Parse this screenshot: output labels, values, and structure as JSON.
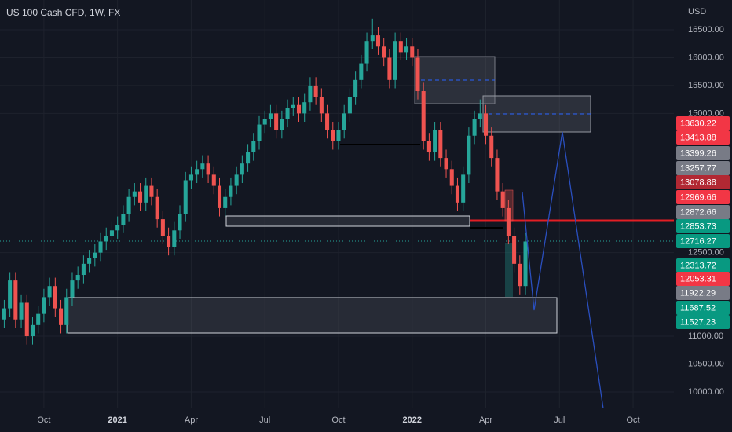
{
  "chart_data": {
    "type": "candlestick",
    "title": "US 100 Cash CFD, 1W, FX",
    "y_unit": "USD",
    "up_color": "#26a69a",
    "down_color": "#ef5350",
    "grid": true,
    "xlim": [
      -7.75,
      111.2
    ],
    "xticks": [
      {
        "value": 0,
        "label": "Oct"
      },
      {
        "value": 13,
        "label": "2021"
      },
      {
        "value": 26,
        "label": "Apr"
      },
      {
        "value": 39,
        "label": "Jul"
      },
      {
        "value": 52,
        "label": "Oct"
      },
      {
        "value": 65,
        "label": "2022"
      },
      {
        "value": 78,
        "label": "Apr"
      },
      {
        "value": 91,
        "label": "Jul"
      },
      {
        "value": 104,
        "label": "Oct"
      }
    ],
    "ylim": [
      9703,
      17036
    ],
    "yticks": [
      {
        "value": 16500,
        "label": "16500.00"
      },
      {
        "value": 16000,
        "label": "16000.00"
      },
      {
        "value": 15500,
        "label": "15500.00"
      },
      {
        "value": 15000,
        "label": "15000.00"
      },
      {
        "value": 12500,
        "label": "12500.00"
      },
      {
        "value": 11000,
        "label": "11000.00"
      },
      {
        "value": 10500,
        "label": "10500.00"
      },
      {
        "value": 10000,
        "label": "10000.00"
      }
    ],
    "x": [
      -7,
      -6,
      -5,
      -4,
      -3,
      -2,
      -1,
      0,
      1,
      2,
      3,
      4,
      5,
      6,
      7,
      8,
      9,
      10,
      11,
      12,
      13,
      14,
      15,
      16,
      17,
      18,
      19,
      20,
      21,
      22,
      23,
      24,
      25,
      26,
      27,
      28,
      29,
      30,
      31,
      32,
      33,
      34,
      35,
      36,
      37,
      38,
      39,
      40,
      41,
      42,
      43,
      44,
      45,
      46,
      47,
      48,
      49,
      50,
      51,
      52,
      53,
      54,
      55,
      56,
      57,
      58,
      59,
      60,
      61,
      62,
      63,
      64,
      65,
      66,
      67,
      68,
      69,
      70,
      71,
      72,
      73,
      74,
      75,
      76,
      77,
      78,
      79,
      80,
      81,
      82,
      83,
      84,
      85
    ],
    "open": [
      11300,
      11500,
      12000,
      11300,
      11600,
      11000,
      11200,
      11400,
      11700,
      11900,
      11500,
      11200,
      11700,
      12000,
      12100,
      12300,
      12400,
      12500,
      12700,
      12800,
      12900,
      13000,
      13200,
      13500,
      13600,
      13400,
      13700,
      13500,
      13100,
      12800,
      12600,
      12900,
      13200,
      13800,
      13900,
      14000,
      14100,
      13900,
      13700,
      13300,
      13500,
      13700,
      13900,
      14100,
      14300,
      14500,
      14800,
      14900,
      15000,
      14700,
      14900,
      15100,
      15150,
      15000,
      15200,
      15500,
      15300,
      15000,
      14700,
      14500,
      14700,
      15000,
      15300,
      15600,
      15900,
      16300,
      16400,
      16200,
      16000,
      15600,
      16300,
      16100,
      16200,
      16000,
      15400,
      14500,
      14300,
      14700,
      14200,
      14000,
      13700,
      13400,
      13900,
      14600,
      14900,
      15000,
      14600,
      14200,
      13600,
      13300,
      12800,
      12300,
      11900
    ],
    "high": [
      11650,
      12150,
      12150,
      11750,
      11750,
      11350,
      11550,
      11850,
      12050,
      12050,
      11650,
      11850,
      12150,
      12250,
      12450,
      12550,
      12650,
      12850,
      12950,
      13050,
      13150,
      13350,
      13650,
      13750,
      13750,
      13850,
      13850,
      13650,
      13250,
      12950,
      13050,
      13350,
      13950,
      14050,
      14150,
      14250,
      14250,
      14050,
      13850,
      13650,
      13850,
      14050,
      14250,
      14450,
      14650,
      14950,
      15050,
      15150,
      15150,
      15050,
      15250,
      15300,
      15300,
      15350,
      15650,
      15650,
      15450,
      15150,
      14850,
      14850,
      15150,
      15450,
      15750,
      16050,
      16450,
      16700,
      16550,
      16350,
      16150,
      16450,
      16450,
      16350,
      16350,
      16150,
      15550,
      14650,
      14850,
      14850,
      14350,
      14150,
      13850,
      14050,
      14750,
      15050,
      15250,
      15150,
      14750,
      14350,
      13750,
      13450,
      12950,
      12450,
      12850
    ],
    "low": [
      11150,
      11350,
      11150,
      11150,
      10850,
      10850,
      11050,
      11250,
      11550,
      11350,
      11050,
      11050,
      11550,
      11850,
      11950,
      12150,
      12250,
      12350,
      12550,
      12650,
      12750,
      12850,
      13050,
      13350,
      13250,
      13250,
      13350,
      12950,
      12650,
      12450,
      12450,
      12750,
      13050,
      13650,
      13750,
      13850,
      13750,
      13550,
      13150,
      13150,
      13350,
      13550,
      13750,
      13950,
      14150,
      14350,
      14650,
      14750,
      14550,
      14550,
      14750,
      14950,
      14850,
      14850,
      15050,
      15150,
      14850,
      14550,
      14350,
      14350,
      14550,
      14850,
      15150,
      15450,
      15750,
      16150,
      16050,
      15850,
      15450,
      15450,
      15950,
      15950,
      15850,
      15250,
      14350,
      14150,
      14150,
      14050,
      13850,
      13550,
      13250,
      13250,
      13750,
      14450,
      14750,
      14450,
      14050,
      13450,
      13150,
      12650,
      12150,
      11750,
      11750
    ],
    "close": [
      11500,
      12000,
      11300,
      11600,
      11000,
      11200,
      11400,
      11700,
      11900,
      11500,
      11200,
      11700,
      12000,
      12100,
      12300,
      12400,
      12500,
      12700,
      12800,
      12900,
      13000,
      13200,
      13500,
      13600,
      13400,
      13700,
      13500,
      13100,
      12800,
      12600,
      12900,
      13200,
      13800,
      13900,
      14000,
      14100,
      13900,
      13700,
      13300,
      13500,
      13700,
      13900,
      14100,
      14300,
      14500,
      14800,
      14900,
      15000,
      14700,
      14900,
      15100,
      15150,
      15000,
      15200,
      15500,
      15300,
      15000,
      14700,
      14500,
      14700,
      15000,
      15300,
      15600,
      15900,
      16300,
      16400,
      16200,
      16000,
      15600,
      16300,
      16100,
      16200,
      16000,
      15400,
      14500,
      14300,
      14700,
      14200,
      14000,
      13700,
      13400,
      13900,
      14600,
      14900,
      15000,
      14600,
      14200,
      13600,
      13300,
      12800,
      12300,
      11900,
      12700
    ],
    "price_tags": [
      {
        "value": 13630.22,
        "color": "#f23645"
      },
      {
        "value": 13413.88,
        "color": "#f23645"
      },
      {
        "value": 13399.26,
        "color": "#787b86"
      },
      {
        "value": 13257.77,
        "color": "#787b86"
      },
      {
        "value": 13078.88,
        "color": "#b22833"
      },
      {
        "value": 12969.66,
        "color": "#f23645"
      },
      {
        "value": 12872.66,
        "color": "#787b86"
      },
      {
        "value": 12853.73,
        "color": "#089981"
      },
      {
        "value": 12716.27,
        "color": "#089981"
      },
      {
        "value": 12313.72,
        "color": "#089981"
      },
      {
        "value": 12053.31,
        "color": "#f23645"
      },
      {
        "value": 11922.29,
        "color": "#787b86"
      },
      {
        "value": 11687.52,
        "color": "#089981"
      },
      {
        "value": 11527.23,
        "color": "#089981"
      }
    ]
  }
}
